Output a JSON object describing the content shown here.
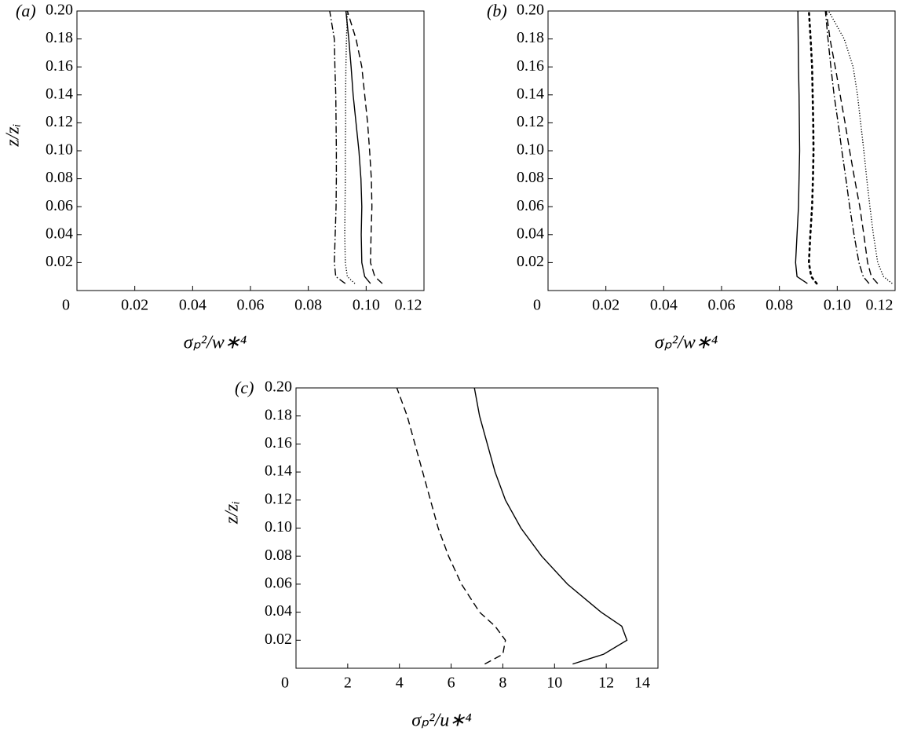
{
  "chart_data": [
    {
      "type": "line",
      "panel_label": "(a)",
      "xlabel": "σₚ²/w∗⁴",
      "ylabel": "z/zᵢ",
      "xlim": [
        0,
        0.12
      ],
      "ylim": [
        0,
        0.2
      ],
      "xticks": [
        0,
        0.02,
        0.04,
        0.06,
        0.08,
        {
          "value": 0.1,
          "label": "0.10"
        },
        0.12
      ],
      "yticks": [
        0.02,
        0.04,
        0.06,
        0.08,
        {
          "value": 0.1,
          "label": "0.10"
        },
        0.12,
        0.14,
        0.16,
        0.18,
        {
          "value": 0.2,
          "label": "0.20"
        }
      ],
      "series": [
        {
          "color": "#000000",
          "style": "solid",
          "x": [
            0.1015,
            0.0995,
            0.0985,
            0.0983,
            0.0985,
            0.0982,
            0.0975,
            0.0965,
            0.0955,
            0.0948,
            0.094,
            0.093
          ],
          "values": [
            0.005,
            0.01,
            0.02,
            0.04,
            0.06,
            0.08,
            0.1,
            0.12,
            0.14,
            0.16,
            0.18,
            0.2
          ]
        },
        {
          "color": "#000000",
          "style": "dashed",
          "x": [
            0.1056,
            0.103,
            0.1015,
            0.1017,
            0.102,
            0.1018,
            0.1012,
            0.1005,
            0.0995,
            0.0985,
            0.0965,
            0.0935
          ],
          "values": [
            0.005,
            0.01,
            0.02,
            0.04,
            0.06,
            0.08,
            0.1,
            0.12,
            0.14,
            0.16,
            0.18,
            0.2
          ]
        },
        {
          "color": "#000000",
          "style": "dotted",
          "x": [
            0.0961,
            0.0935,
            0.0928,
            0.0926,
            0.0927,
            0.0928,
            0.0928,
            0.0929,
            0.0929,
            0.093,
            0.0932,
            0.0935
          ],
          "values": [
            0.005,
            0.01,
            0.02,
            0.04,
            0.06,
            0.08,
            0.1,
            0.12,
            0.14,
            0.16,
            0.18,
            0.2
          ]
        },
        {
          "color": "#000000",
          "style": "dashdot",
          "x": [
            0.0928,
            0.0895,
            0.089,
            0.0893,
            0.0896,
            0.0897,
            0.0897,
            0.0896,
            0.0895,
            0.0892,
            0.089,
            0.0874
          ],
          "values": [
            0.005,
            0.01,
            0.02,
            0.04,
            0.06,
            0.08,
            0.1,
            0.12,
            0.14,
            0.16,
            0.18,
            0.2
          ]
        }
      ]
    },
    {
      "type": "line",
      "panel_label": "(b)",
      "xlabel": "σₚ²/w∗⁴",
      "xlim": [
        0,
        0.12
      ],
      "ylim": [
        0,
        0.2
      ],
      "xticks": [
        0,
        0.02,
        0.04,
        0.06,
        0.08,
        {
          "value": 0.1,
          "label": "0.10"
        },
        0.12
      ],
      "yticks": [
        0.02,
        0.04,
        0.06,
        0.08,
        {
          "value": 0.1,
          "label": "0.10"
        },
        0.12,
        0.14,
        0.16,
        0.18,
        {
          "value": 0.2,
          "label": "0.20"
        }
      ],
      "series": [
        {
          "color": "#000000",
          "style": "solid",
          "x": [
            0.0897,
            0.0861,
            0.0856,
            0.0861,
            0.0866,
            0.0868,
            0.087,
            0.0869,
            0.0868,
            0.0866,
            0.0865,
            0.0864
          ],
          "values": [
            0.005,
            0.01,
            0.02,
            0.04,
            0.06,
            0.08,
            0.1,
            0.12,
            0.14,
            0.16,
            0.18,
            0.2
          ]
        },
        {
          "color": "#000000",
          "style": "sparse-dotted",
          "x": [
            0.0929,
            0.091,
            0.0902,
            0.0907,
            0.0913,
            0.0916,
            0.0918,
            0.0917,
            0.0915,
            0.0913,
            0.0908,
            0.0902
          ],
          "values": [
            0.005,
            0.01,
            0.02,
            0.04,
            0.06,
            0.08,
            0.1,
            0.12,
            0.14,
            0.16,
            0.18,
            0.2
          ]
        },
        {
          "color": "#000000",
          "style": "dashdot",
          "x": [
            0.111,
            0.109,
            0.1075,
            0.1058,
            0.1043,
            0.103,
            0.1016,
            0.1003,
            0.0989,
            0.0978,
            0.0968,
            0.0959
          ],
          "values": [
            0.005,
            0.01,
            0.02,
            0.04,
            0.06,
            0.08,
            0.1,
            0.12,
            0.14,
            0.16,
            0.18,
            0.2
          ]
        },
        {
          "color": "#000000",
          "style": "dashed",
          "x": [
            0.114,
            0.1118,
            0.1105,
            0.1092,
            0.1078,
            0.106,
            0.1043,
            0.1027,
            0.101,
            0.0993,
            0.0975,
            0.0962
          ],
          "values": [
            0.005,
            0.01,
            0.02,
            0.04,
            0.06,
            0.08,
            0.1,
            0.12,
            0.14,
            0.16,
            0.18,
            0.2
          ]
        },
        {
          "color": "#000000",
          "style": "dotted",
          "x": [
            0.119,
            0.116,
            0.114,
            0.1125,
            0.1113,
            0.1102,
            0.1092,
            0.1081,
            0.107,
            0.1055,
            0.1024,
            0.097
          ],
          "values": [
            0.005,
            0.01,
            0.02,
            0.04,
            0.06,
            0.08,
            0.1,
            0.12,
            0.14,
            0.16,
            0.18,
            0.2
          ]
        }
      ]
    },
    {
      "type": "line",
      "panel_label": "(c)",
      "xlabel": "σₚ²/u∗⁴",
      "ylabel": "z/zᵢ",
      "xlim": [
        0,
        14
      ],
      "ylim": [
        0,
        0.2
      ],
      "xticks": [
        0,
        2,
        4,
        6,
        8,
        10,
        12,
        14
      ],
      "yticks": [
        0.02,
        0.04,
        0.06,
        0.08,
        {
          "value": 0.1,
          "label": "0.10"
        },
        0.12,
        0.14,
        0.16,
        0.18,
        {
          "value": 0.2,
          "label": "0.20"
        }
      ],
      "series": [
        {
          "color": "#000000",
          "style": "solid",
          "x": [
            10.7,
            11.9,
            12.8,
            12.6,
            11.8,
            10.5,
            9.5,
            8.7,
            8.1,
            7.7,
            7.4,
            7.1,
            6.9
          ],
          "values": [
            0.003,
            0.01,
            0.02,
            0.03,
            0.04,
            0.06,
            0.08,
            0.1,
            0.12,
            0.14,
            0.16,
            0.18,
            0.2
          ]
        },
        {
          "color": "#000000",
          "style": "dashed",
          "x": [
            7.3,
            8.0,
            8.1,
            7.7,
            7.1,
            6.4,
            5.9,
            5.5,
            5.2,
            4.9,
            4.6,
            4.3,
            3.9
          ],
          "values": [
            0.003,
            0.01,
            0.02,
            0.03,
            0.04,
            0.06,
            0.08,
            0.1,
            0.12,
            0.14,
            0.16,
            0.18,
            0.2
          ]
        }
      ]
    }
  ]
}
